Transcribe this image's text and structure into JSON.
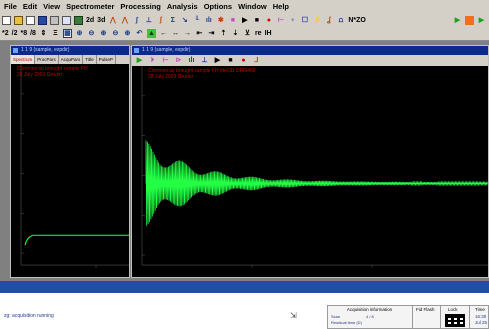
{
  "menu": {
    "items": [
      "File",
      "Edit",
      "View",
      "Spectrometer",
      "Processing",
      "Analysis",
      "Options",
      "Window",
      "Help"
    ]
  },
  "toolbar_top": {
    "labels": [
      "2d",
      "3d"
    ],
    "nzo_label": "N*ZO"
  },
  "toolbar_second": {
    "labels": [
      "*2",
      "/2",
      "*8",
      "/8"
    ],
    "re_label": "re",
    "im_label": "IH"
  },
  "left_window": {
    "title": "1 1 9 (sample, expdir)",
    "tabs": [
      "Spectrum",
      "ProcPars",
      "AcquPars",
      "Title",
      "PulseP"
    ],
    "annotation_line1": "Commercial brought sample   FH",
    "annotation_line2": "28 July 2003   Gruder"
  },
  "right_window": {
    "title": "1 1 9 (sample, expdir)",
    "annotation_line1": "Commercial brought sample   FH   MeOD   ORG400",
    "annotation_line2": "28 July 2003   Gruder",
    "fid_color": "#22ff44"
  },
  "status": {
    "text": "zg: acquisition running"
  },
  "acquisition": {
    "title": "Acquisition information",
    "scan_label": "Scan",
    "scan_value": "4 / 8",
    "residual_label": "Residual time (D)",
    "fid_flash_label": "Fid Flash",
    "lock_label": "Lock",
    "time_label": "Time",
    "time_value": "16:30",
    "date_value": "Jul 25"
  }
}
